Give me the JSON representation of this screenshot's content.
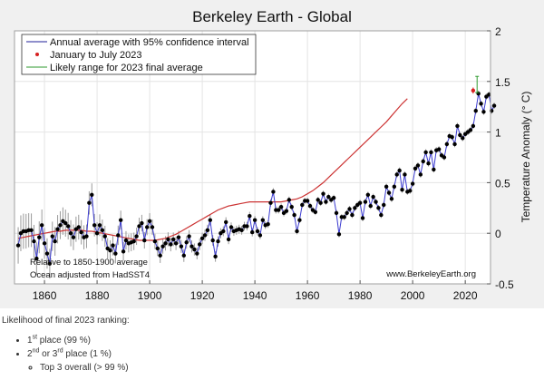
{
  "chart_data": {
    "type": "line",
    "title": "Berkeley Earth - Global",
    "xlabel": "",
    "ylabel": "Temperature Anomaly (° C)",
    "xlim": [
      1848.6,
      2029.6
    ],
    "ylim": [
      -0.5,
      2
    ],
    "xticks": [
      1860,
      1880,
      1900,
      1920,
      1940,
      1960,
      1980,
      2000,
      2020
    ],
    "yticks": [
      -0.5,
      0,
      0.5,
      1,
      1.5,
      2
    ],
    "ytick_labels": [
      "-0.5",
      "0",
      "0.5",
      "1",
      "1.5",
      "2"
    ],
    "y_axis_side": "right",
    "grid": true,
    "legend_position": "top-left",
    "legend": [
      {
        "label": "Annual average with 95% confidence interval",
        "color": "#1f1f9a",
        "kind": "line"
      },
      {
        "label": "January to July 2023",
        "color": "#d62020",
        "kind": "dot"
      },
      {
        "label": "Likely range for 2023 final average",
        "color": "#2e9a2e",
        "kind": "line"
      }
    ],
    "annotations": [
      "Relative to 1850-1900 average",
      "Ocean adjusted from HadSST4",
      "www.BerkeleyEarth.org"
    ],
    "annual_start_year": 1850,
    "annual_values": [
      -0.12,
      0.0,
      0.02,
      0.02,
      0.03,
      0.03,
      -0.08,
      -0.25,
      -0.04,
      0.08,
      -0.1,
      -0.2,
      -0.3,
      -0.03,
      -0.08,
      0.04,
      0.08,
      0.12,
      0.1,
      0.07,
      0.0,
      -0.04,
      0.04,
      0.06,
      0.01,
      -0.04,
      -0.03,
      0.3,
      0.38,
      0.08,
      0.0,
      0.08,
      0.03,
      -0.03,
      -0.15,
      -0.17,
      -0.12,
      -0.2,
      -0.02,
      0.13,
      -0.18,
      -0.07,
      -0.1,
      -0.09,
      -0.08,
      -0.03,
      0.07,
      0.1,
      -0.07,
      0.06,
      0.12,
      0.06,
      -0.08,
      -0.15,
      -0.22,
      -0.13,
      -0.1,
      -0.06,
      -0.11,
      -0.06,
      -0.1,
      -0.04,
      -0.13,
      -0.22,
      -0.09,
      -0.03,
      -0.13,
      -0.16,
      -0.2,
      -0.11,
      -0.05,
      -0.02,
      0.03,
      0.13,
      -0.07,
      -0.23,
      -0.08,
      -0.0,
      0.02,
      0.11,
      -0.06,
      0.06,
      0.02,
      0.03,
      0.04,
      0.03,
      0.07,
      0.07,
      0.17,
      0.01,
      0.13,
      0.02,
      -0.02,
      0.13,
      0.08,
      0.09,
      0.3,
      0.41,
      0.23,
      0.23,
      0.26,
      0.2,
      0.22,
      0.33,
      0.26,
      0.18,
      0.02,
      0.13,
      0.28,
      0.32,
      0.32,
      0.27,
      0.23,
      0.21,
      0.33,
      0.3,
      0.39,
      0.31,
      0.36,
      0.33,
      0.35,
      0.2,
      -0.01,
      0.16,
      0.16,
      0.2,
      0.24,
      0.18,
      0.25,
      0.28,
      0.3,
      0.15,
      0.31,
      0.38,
      0.27,
      0.36,
      0.31,
      0.25,
      0.18,
      0.28,
      0.46,
      0.4,
      0.34,
      0.46,
      0.58,
      0.62,
      0.43,
      0.58,
      0.41,
      0.42,
      0.49,
      0.64,
      0.67,
      0.58,
      0.71,
      0.8,
      0.69,
      0.8,
      0.63,
      0.82,
      0.83,
      0.77,
      0.75,
      0.88,
      0.96,
      0.95,
      0.88,
      1.06,
      0.97,
      0.94,
      0.98,
      1.0,
      1.02,
      1.06,
      1.21,
      1.38,
      1.28,
      1.2,
      1.35,
      1.37,
      1.21,
      1.26
    ],
    "smoothed_start_year": 1850,
    "smoothed_values": [
      -0.05,
      -0.04,
      -0.03,
      -0.02,
      -0.01,
      0.0,
      0.01,
      0.02,
      0.02,
      0.03,
      0.03,
      0.03,
      0.03,
      0.02,
      0.02,
      0.01,
      0.0,
      -0.01,
      -0.02,
      -0.03,
      -0.04,
      -0.05,
      -0.06,
      -0.07,
      -0.07,
      -0.07,
      -0.07,
      -0.06,
      -0.05,
      -0.03,
      -0.01,
      0.02,
      0.05,
      0.08,
      0.11,
      0.14,
      0.17,
      0.2,
      0.23,
      0.25,
      0.27,
      0.28,
      0.29,
      0.3,
      0.31,
      0.31,
      0.31,
      0.31,
      0.31,
      0.31,
      0.31,
      0.32,
      0.33,
      0.34,
      0.36,
      0.39,
      0.42,
      0.46,
      0.5,
      0.55,
      0.6,
      0.65,
      0.7,
      0.75,
      0.8,
      0.85,
      0.9,
      0.95,
      1.0,
      1.05,
      1.1,
      1.16,
      1.22,
      1.28,
      1.33
    ],
    "smoothed_step_years": 2,
    "partial_2023": {
      "year": 2023,
      "value": 1.41,
      "ci": [
        1.38,
        1.44
      ]
    },
    "likely_range_2023": {
      "year": 2024.5,
      "low": 1.39,
      "high": 1.55
    }
  },
  "below_text": {
    "heading": "Likelihood of final 2023 ranking:",
    "items": [
      {
        "ordinal": "1",
        "suffix": "st",
        "rest": " place (99 %)"
      },
      {
        "ordinal": "2",
        "suffix": "nd",
        "mid": " or 3",
        "suffix2": "rd",
        "rest": " place (1 %)"
      }
    ],
    "subitem": "Top 3 overall (> 99 %)"
  }
}
